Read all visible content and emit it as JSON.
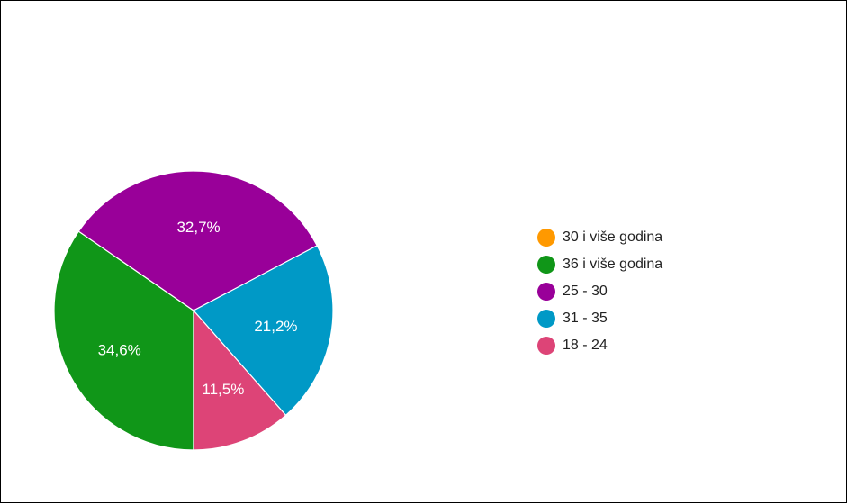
{
  "chart_data": {
    "type": "pie",
    "slices": [
      {
        "label": "30 i više godina",
        "value": 0.0,
        "color": "#ff9900",
        "value_label": ""
      },
      {
        "label": "36 i više godina",
        "value": 34.6,
        "color": "#109618",
        "value_label": "34,6%"
      },
      {
        "label": "25 - 30",
        "value": 32.7,
        "color": "#990099",
        "value_label": "32,7%"
      },
      {
        "label": "31 - 35",
        "value": 21.2,
        "color": "#0099c6",
        "value_label": "21,2%"
      },
      {
        "label": "18 - 24",
        "value": 11.5,
        "color": "#dd4477",
        "value_label": "11,5%"
      }
    ],
    "legend_position": "right"
  }
}
